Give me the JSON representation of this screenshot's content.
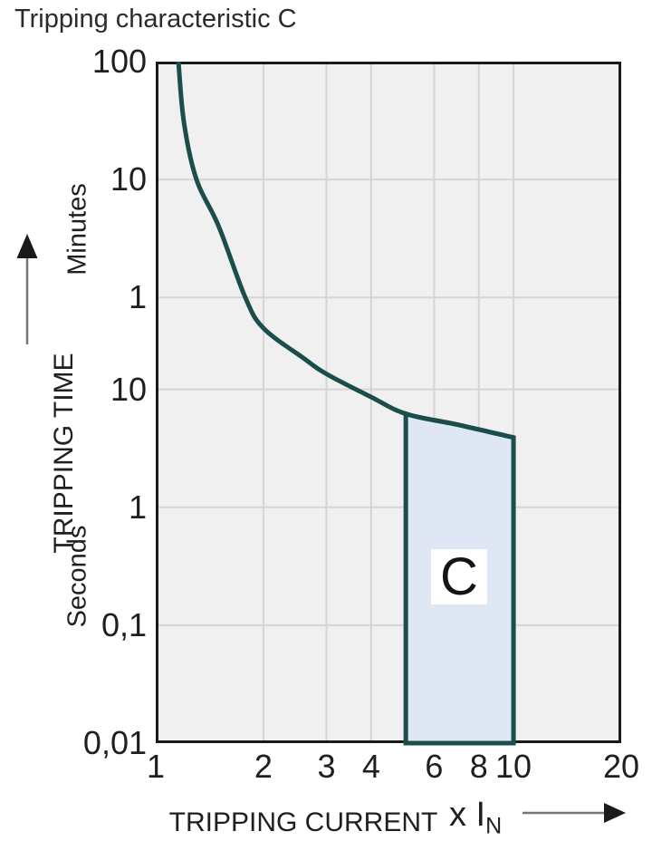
{
  "title": "Tripping characteristic C",
  "colors": {
    "curve": "#1b4e4b",
    "region_fill": "#dfe6f4",
    "plot_bg": "#f0f0f0",
    "grid": "#d5d5d5",
    "border": "#1a1a1a",
    "text": "#1f1f1f",
    "arrow_line": "#767676",
    "arrow_head": "#1a1a1a"
  },
  "y_axis": {
    "label": "TRIPPING TIME",
    "unit_top": "Minutes",
    "unit_bottom": "Seconds",
    "ticks": [
      {
        "label": "100",
        "seconds": 6000
      },
      {
        "label": "10",
        "seconds": 600
      },
      {
        "label": "1",
        "seconds": 60
      },
      {
        "label": "10",
        "seconds": 10
      },
      {
        "label": "1",
        "seconds": 1
      },
      {
        "label": "0,1",
        "seconds": 0.1
      },
      {
        "label": "0,01",
        "seconds": 0.01
      }
    ]
  },
  "x_axis": {
    "label": "TRIPPING CURRENT",
    "unit": "x I",
    "unit_sub": "N",
    "ticks": [
      1,
      2,
      3,
      4,
      6,
      8,
      10,
      20
    ]
  },
  "chart_data": {
    "type": "line",
    "title": "Tripping characteristic C",
    "xlabel": "TRIPPING CURRENT (x IN)",
    "ylabel": "TRIPPING TIME (Minutes / Seconds)",
    "x_scale": "log",
    "y_scale": "log",
    "xlim": [
      1,
      20
    ],
    "ylim_seconds": [
      0.01,
      6000
    ],
    "x_ticks": [
      1,
      2,
      3,
      4,
      6,
      8,
      10,
      20
    ],
    "y_ticks_minutes": [
      100,
      10,
      1
    ],
    "y_ticks_seconds": [
      10,
      1,
      0.1,
      0.01
    ],
    "grid": true,
    "series": [
      {
        "name": "C tripping curve",
        "points_x_multiple_t_seconds": [
          [
            1.157,
            6000
          ],
          [
            1.2,
            1800
          ],
          [
            1.3,
            600
          ],
          [
            1.5,
            240
          ],
          [
            1.78,
            60
          ],
          [
            2.0,
            33
          ],
          [
            2.58,
            18.5
          ],
          [
            3.0,
            13.5
          ],
          [
            4.0,
            8.6
          ],
          [
            5.0,
            6.2
          ],
          [
            7.0,
            5.0
          ],
          [
            10.0,
            3.9
          ]
        ]
      }
    ],
    "region": {
      "label": "C",
      "x_from": 5,
      "x_to": 10,
      "t_top_at_x_from": 6.2,
      "t_top_at_x_to": 3.9,
      "t_bottom": 0.01
    }
  }
}
